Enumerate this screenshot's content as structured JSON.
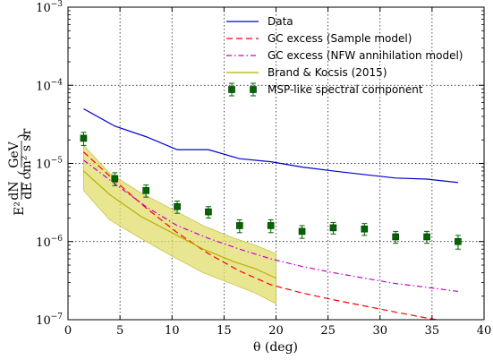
{
  "chart_data": {
    "type": "line",
    "xlabel": "θ (deg)",
    "ylabel": "E²dN/dE (GeV/cm² s sr)",
    "ylabel_parts": {
      "prefix": "E²",
      "deriv_num": "dN",
      "deriv_den": "dE",
      "unit_num": "GeV",
      "unit_den": "cm² s sr"
    },
    "xlim": [
      0,
      40
    ],
    "ylim": [
      1e-07,
      0.001
    ],
    "yscale": "log",
    "xticks": [
      0,
      5,
      10,
      15,
      20,
      25,
      30,
      35,
      40
    ],
    "xtick_labels": [
      "0",
      "5",
      "10",
      "15",
      "20",
      "25",
      "30",
      "35",
      "40"
    ],
    "yticks": [
      1e-07,
      1e-06,
      1e-05,
      0.0001,
      0.001
    ],
    "ytick_labels": [
      {
        "base": "10",
        "exp": "−7"
      },
      {
        "base": "10",
        "exp": "−6"
      },
      {
        "base": "10",
        "exp": "−5"
      },
      {
        "base": "10",
        "exp": "−4"
      },
      {
        "base": "10",
        "exp": "−3"
      }
    ],
    "grid": true,
    "legend_position": "top-right",
    "series": [
      {
        "name": "Data",
        "kind": "line",
        "color": "#0000cc",
        "dash": "solid",
        "x": [
          1.5,
          4.5,
          7.5,
          10.5,
          13.5,
          16.5,
          19.5,
          22.5,
          25.5,
          28.5,
          31.5,
          34.5,
          37.5
        ],
        "y": [
          5e-05,
          3e-05,
          2.2e-05,
          1.5e-05,
          1.5e-05,
          1.15e-05,
          1.05e-05,
          9e-06,
          8e-06,
          7.2e-06,
          6.5e-06,
          6.3e-06,
          5.7e-06
        ]
      },
      {
        "name": "GC excess (Sample model)",
        "kind": "line",
        "color": "#ff0000",
        "dash": "dashed",
        "x": [
          1.5,
          4.5,
          7.5,
          10.5,
          13.5,
          16.5,
          19.5,
          22.5,
          25.5,
          28.5,
          31.5,
          34.5,
          37.5
        ],
        "y": [
          1.4e-05,
          6e-06,
          2.7e-06,
          1.3e-06,
          7e-07,
          4.2e-07,
          2.8e-07,
          2.2e-07,
          1.8e-07,
          1.5e-07,
          1.25e-07,
          1.05e-07,
          9e-08
        ]
      },
      {
        "name": "GC excess (NFW annihilation model)",
        "kind": "line",
        "color": "#cc00cc",
        "dash": "dashdot",
        "x": [
          1.5,
          4.5,
          7.5,
          10.5,
          13.5,
          16.5,
          19.5,
          22.5,
          25.5,
          28.5,
          31.5,
          34.5,
          37.5
        ],
        "y": [
          1.1e-05,
          5.5e-06,
          2.8e-06,
          1.6e-06,
          1.1e-06,
          8e-07,
          6e-07,
          4.8e-07,
          4e-07,
          3.4e-07,
          2.9e-07,
          2.6e-07,
          2.3e-07
        ]
      },
      {
        "name": "Brand & Kocsis (2015)",
        "kind": "line_band",
        "color": "#b8b000",
        "band_color": "#e2dd6e",
        "dash": "solid",
        "x": [
          1.5,
          4.0,
          7.0,
          10.0,
          13.0,
          16.0,
          18.0,
          20.0
        ],
        "y": [
          8e-06,
          4e-06,
          2.1e-06,
          1.3e-06,
          8e-07,
          5.5e-07,
          4.5e-07,
          3.4e-07
        ],
        "y_low": [
          4.5e-06,
          1.9e-06,
          1.1e-06,
          6.5e-07,
          4e-07,
          2.8e-07,
          2.2e-07,
          1.6e-07
        ],
        "y_high": [
          1.7e-05,
          7.5e-06,
          4.2e-06,
          2.6e-06,
          1.6e-06,
          1.1e-06,
          9e-07,
          7e-07
        ]
      },
      {
        "name": "MSP-like spectral component",
        "kind": "errorbar",
        "color": "#006600",
        "x": [
          1.5,
          4.5,
          7.5,
          10.5,
          13.5,
          16.5,
          19.5,
          22.5,
          25.5,
          28.5,
          31.5,
          34.5,
          37.5
        ],
        "y": [
          2.1e-05,
          6.4e-06,
          4.5e-06,
          2.8e-06,
          2.4e-06,
          1.6e-06,
          1.6e-06,
          1.35e-06,
          1.5e-06,
          1.45e-06,
          1.15e-06,
          1.15e-06,
          1e-06
        ],
        "yerr_low": [
          4e-06,
          1.2e-06,
          8e-07,
          5e-07,
          4e-07,
          3e-07,
          3e-07,
          2.5e-07,
          2.5e-07,
          2.5e-07,
          2e-07,
          2e-07,
          2e-07
        ],
        "yerr_high": [
          4e-06,
          1.2e-06,
          8e-07,
          5e-07,
          4e-07,
          3e-07,
          3e-07,
          2.5e-07,
          2.5e-07,
          2.5e-07,
          2e-07,
          2e-07,
          2e-07
        ]
      }
    ]
  }
}
